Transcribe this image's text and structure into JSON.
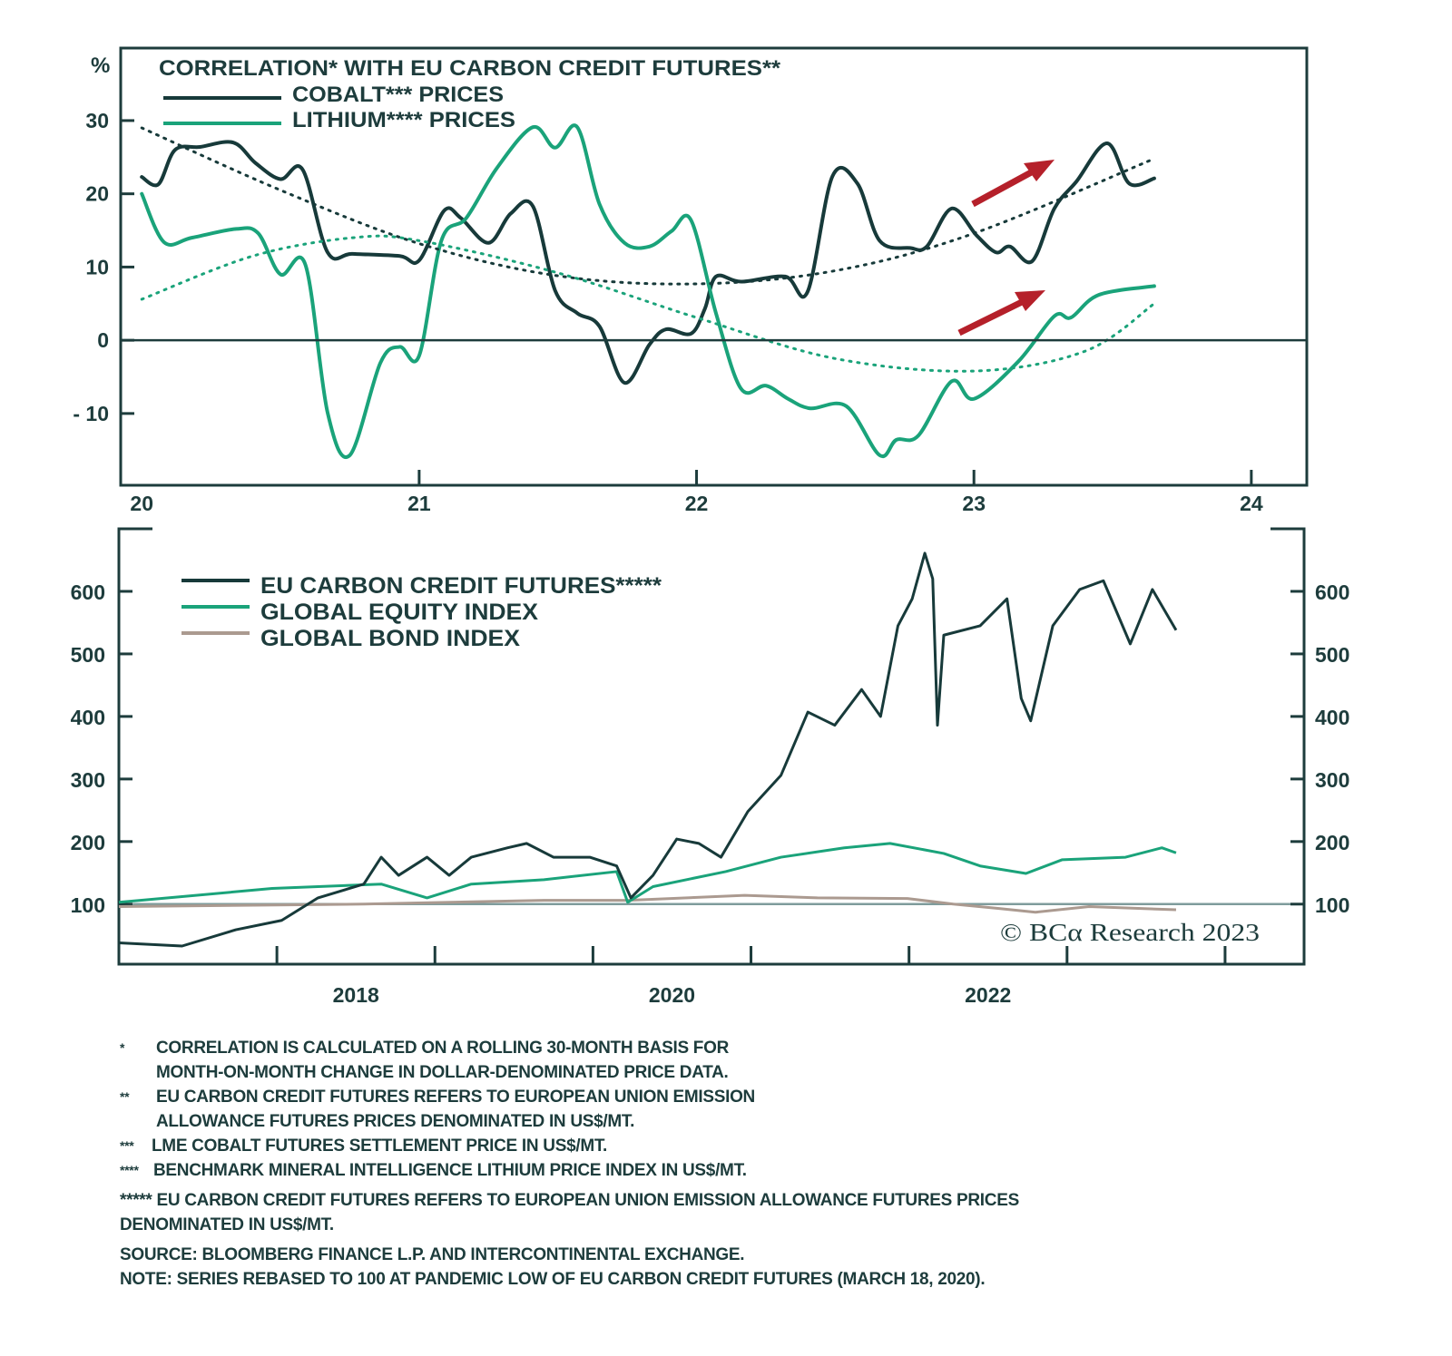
{
  "colors": {
    "cobalt": "#173a3a",
    "lithium": "#1aa37a",
    "bond": "#ab9a90",
    "axis": "#1d3c3c",
    "arrow": "#b5202a",
    "baseline": "#7f9c9c"
  },
  "chart_data": [
    {
      "type": "line",
      "title": "CORRELATION* WITH EU CARBON CREDIT FUTURES**",
      "ylabel": "%",
      "ylim": [
        -19.8,
        39.9
      ],
      "xlim": [
        19.96,
        24.2
      ],
      "yticks": [
        30,
        20,
        10,
        0,
        -10
      ],
      "ytick_labels": [
        "30",
        "20",
        "10",
        "0",
        "- 10"
      ],
      "xticks": [
        20,
        21,
        22,
        23,
        24
      ],
      "xtick_labels": [
        "20",
        "21",
        "22",
        "23",
        "24"
      ],
      "legend_placement": "top-left",
      "annotations": [
        "red up-trend arrow above cobalt",
        "red up-trend arrow above lithium"
      ],
      "series": [
        {
          "name": "COBALT*** PRICES",
          "style": "solid",
          "color_key": "cobalt",
          "x": [
            20.0,
            20.06,
            20.12,
            20.21,
            20.33,
            20.41,
            20.5,
            20.58,
            20.67,
            20.76,
            20.93,
            21.0,
            21.09,
            21.15,
            21.25,
            21.33,
            21.41,
            21.49,
            21.57,
            21.65,
            21.74,
            21.83,
            21.89,
            21.98,
            22.03,
            22.07,
            22.16,
            22.32,
            22.4,
            22.49,
            22.58,
            22.66,
            22.77,
            22.83,
            22.92,
            23.01,
            23.08,
            23.13,
            23.21,
            23.29,
            23.37,
            23.48,
            23.56,
            23.65
          ],
          "y": [
            22.3,
            21.3,
            26,
            26.4,
            27,
            24.2,
            22,
            23.3,
            12,
            11.8,
            11.5,
            10.9,
            17.7,
            16.7,
            13.3,
            17.3,
            18.3,
            6.8,
            3.7,
            1.9,
            -5.8,
            -0.6,
            1.5,
            0.9,
            4.3,
            8.7,
            8,
            8.7,
            6.6,
            22.4,
            21.4,
            13.6,
            12.6,
            12.8,
            18,
            14.3,
            12,
            12.8,
            10.8,
            18,
            21.7,
            26.9,
            21.4,
            22.1
          ]
        },
        {
          "name": "LITHIUM**** PRICES",
          "style": "solid",
          "color_key": "lithium",
          "x": [
            20.0,
            20.08,
            20.18,
            20.34,
            20.42,
            20.5,
            20.59,
            20.67,
            20.75,
            20.86,
            20.93,
            21.0,
            21.08,
            21.17,
            21.28,
            21.41,
            21.49,
            21.57,
            21.65,
            21.74,
            21.83,
            21.91,
            21.98,
            22.07,
            22.16,
            22.25,
            22.33,
            22.41,
            22.54,
            22.66,
            22.72,
            22.8,
            22.92,
            23.0,
            23.16,
            23.29,
            23.35,
            23.45,
            23.65
          ],
          "y": [
            20,
            13.4,
            14,
            15.2,
            14.6,
            9,
            10.3,
            -9.9,
            -15.7,
            -3.1,
            -0.9,
            -2.1,
            13.6,
            16.7,
            23.5,
            29.1,
            26.3,
            29.1,
            18.6,
            13.3,
            12.8,
            14.9,
            16.4,
            3.7,
            -6.6,
            -6.2,
            -8,
            -9.3,
            -9,
            -15.7,
            -13.6,
            -13,
            -5.6,
            -8,
            -2.9,
            3.3,
            3.1,
            6.2,
            7.4
          ]
        },
        {
          "name": "Cobalt trend",
          "style": "dotted",
          "color_key": "cobalt",
          "x": [
            20.0,
            20.5,
            21.0,
            21.5,
            22.0,
            22.5,
            23.0,
            23.65
          ],
          "y": [
            29,
            20.5,
            13.2,
            8.8,
            7.7,
            9.5,
            14.6,
            24.8
          ]
        },
        {
          "name": "Lithium trend",
          "style": "dotted",
          "color_key": "lithium",
          "x": [
            20.0,
            20.4,
            20.76,
            21.0,
            21.5,
            22.0,
            22.5,
            23.0,
            23.4,
            23.65
          ],
          "y": [
            5.6,
            11.5,
            14,
            13.6,
            9.2,
            3.1,
            -2.5,
            -4.2,
            -1.5,
            5
          ]
        }
      ]
    },
    {
      "type": "line",
      "title": "",
      "ylim": [
        4,
        700
      ],
      "xlim": [
        2017.0,
        2024.5
      ],
      "yticks": [
        100,
        200,
        300,
        400,
        500,
        600
      ],
      "ytick_labels": [
        "100",
        "200",
        "300",
        "400",
        "500",
        "600"
      ],
      "xticks": [
        2018,
        2019,
        2020,
        2021,
        2022,
        2023,
        2024
      ],
      "xtick_labels": [
        "2018",
        "2020",
        "2022"
      ],
      "xtick_label_years": [
        2018,
        2020,
        2022
      ],
      "reference_line": 100,
      "legend_placement": "top-left",
      "copyright": "© BCα Research 2023",
      "series": [
        {
          "name": "EU CARBON CREDIT FUTURES*****",
          "color_key": "cobalt",
          "x": [
            2017.0,
            2017.4,
            2017.74,
            2018.03,
            2018.26,
            2018.55,
            2018.66,
            2018.77,
            2018.95,
            2019.09,
            2019.23,
            2019.46,
            2019.58,
            2019.75,
            2019.98,
            2020.15,
            2020.24,
            2020.38,
            2020.53,
            2020.67,
            2020.81,
            2020.98,
            2021.19,
            2021.36,
            2021.53,
            2021.7,
            2021.82,
            2021.93,
            2022.02,
            2022.1,
            2022.15,
            2022.18,
            2022.22,
            2022.45,
            2022.62,
            2022.71,
            2022.77,
            2022.91,
            2023.08,
            2023.23,
            2023.4,
            2023.54,
            2023.69
          ],
          "y": [
            38,
            33,
            59,
            74,
            110,
            132,
            175,
            146,
            175,
            146,
            175,
            190,
            197,
            175,
            175,
            161,
            110,
            146,
            204,
            197,
            175,
            248,
            306,
            407,
            386,
            443,
            400,
            545,
            588,
            661,
            620,
            386,
            530,
            545,
            588,
            429,
            393,
            545,
            603,
            617,
            516,
            603,
            538
          ]
        },
        {
          "name": "GLOBAL EQUITY INDEX",
          "color_key": "lithium",
          "x": [
            2017.0,
            2017.97,
            2018.66,
            2018.95,
            2019.23,
            2019.69,
            2020.15,
            2020.22,
            2020.38,
            2020.84,
            2021.19,
            2021.59,
            2021.88,
            2022.22,
            2022.45,
            2022.74,
            2022.97,
            2023.37,
            2023.6,
            2023.69
          ],
          "y": [
            103,
            125,
            132,
            110,
            132,
            139,
            152,
            103,
            128,
            152,
            175,
            190,
            197,
            181,
            161,
            149,
            171,
            175,
            190,
            182
          ]
        },
        {
          "name": "GLOBAL BOND INDEX",
          "color_key": "bond",
          "x": [
            2017.0,
            2018.55,
            2019.69,
            2020.22,
            2020.96,
            2021.42,
            2021.99,
            2022.28,
            2022.57,
            2022.8,
            2023.14,
            2023.69
          ],
          "y": [
            96,
            100,
            106,
            106,
            114,
            110,
            109,
            100,
            93,
            87,
            96,
            91
          ]
        }
      ]
    }
  ],
  "footnotes": {
    "n1_mark": "*",
    "n1_line1": "CORRELATION IS CALCULATED ON A ROLLING 30-MONTH BASIS FOR",
    "n1_line2": "MONTH-ON-MONTH CHANGE IN DOLLAR-DENOMINATED PRICE DATA.",
    "n2_mark": "**",
    "n2_line1": "EU CARBON CREDIT FUTURES REFERS TO EUROPEAN UNION EMISSION",
    "n2_line2": "ALLOWANCE FUTURES PRICES DENOMINATED IN US$/MT.",
    "n3_mark": "***",
    "n3_line1": "LME COBALT FUTURES SETTLEMENT PRICE IN US$/MT.",
    "n4_mark": "****",
    "n4_line1": "BENCHMARK MINERAL INTELLIGENCE LITHIUM PRICE INDEX IN US$/MT.",
    "n5_line1": "***** EU CARBON CREDIT FUTURES REFERS TO EUROPEAN UNION EMISSION  ALLOWANCE FUTURES PRICES",
    "n5_line2": "DENOMINATED IN US$/MT.",
    "source": "SOURCE: BLOOMBERG FINANCE L.P. AND INTERCONTINENTAL EXCHANGE.",
    "note": "NOTE: SERIES REBASED TO 100 AT PANDEMIC LOW OF EU CARBON CREDIT FUTURES (MARCH 18, 2020)."
  }
}
